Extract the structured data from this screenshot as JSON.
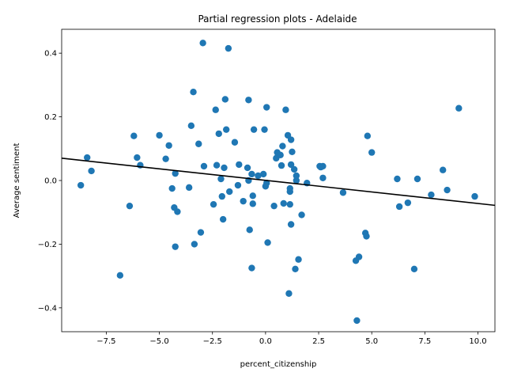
{
  "chart_data": {
    "type": "scatter",
    "title": "Partial regression plots - Adelaide",
    "xlabel": "percent_citizenship",
    "ylabel": "Average sentiment",
    "xlim": [
      -9.6,
      10.8
    ],
    "ylim": [
      -0.475,
      0.475
    ],
    "xticks": [
      -7.5,
      -5.0,
      -2.5,
      0.0,
      2.5,
      5.0,
      7.5,
      10.0
    ],
    "xtick_labels": [
      "−7.5",
      "−5.0",
      "−2.5",
      "0.0",
      "2.5",
      "5.0",
      "7.5",
      "10.0"
    ],
    "yticks": [
      -0.4,
      -0.2,
      0.0,
      0.2,
      0.4
    ],
    "ytick_labels": [
      "−0.4",
      "−0.2",
      "0.0",
      "0.2",
      "0.4"
    ],
    "grid": false,
    "point_color": "#1f77b4",
    "line_color": "#000000",
    "regression_line": {
      "x": [
        -9.6,
        10.8
      ],
      "y": [
        0.07,
        -0.078
      ]
    },
    "points": [
      [
        -8.7,
        -0.015
      ],
      [
        -8.4,
        0.072
      ],
      [
        -8.2,
        0.03
      ],
      [
        -6.85,
        -0.298
      ],
      [
        -6.4,
        -0.08
      ],
      [
        -6.2,
        0.14
      ],
      [
        -6.05,
        0.072
      ],
      [
        -5.9,
        0.048
      ],
      [
        -5.0,
        0.142
      ],
      [
        -4.7,
        0.068
      ],
      [
        -4.55,
        0.11
      ],
      [
        -4.4,
        -0.025
      ],
      [
        -4.25,
        0.022
      ],
      [
        -4.3,
        -0.085
      ],
      [
        -4.25,
        -0.208
      ],
      [
        -4.15,
        -0.098
      ],
      [
        -3.6,
        -0.022
      ],
      [
        -3.5,
        0.172
      ],
      [
        -3.4,
        0.278
      ],
      [
        -3.35,
        -0.2
      ],
      [
        -3.15,
        0.115
      ],
      [
        -3.05,
        -0.163
      ],
      [
        -2.95,
        0.432
      ],
      [
        -2.9,
        0.045
      ],
      [
        -2.45,
        -0.075
      ],
      [
        -2.35,
        0.222
      ],
      [
        -2.3,
        0.048
      ],
      [
        -2.2,
        0.147
      ],
      [
        -2.1,
        0.005
      ],
      [
        -2.05,
        -0.05
      ],
      [
        -2.0,
        -0.122
      ],
      [
        -1.95,
        0.04
      ],
      [
        -1.9,
        0.255
      ],
      [
        -1.85,
        0.16
      ],
      [
        -1.75,
        0.415
      ],
      [
        -1.7,
        -0.035
      ],
      [
        -1.45,
        0.12
      ],
      [
        -1.3,
        -0.015
      ],
      [
        -1.25,
        0.05
      ],
      [
        -1.05,
        -0.065
      ],
      [
        -0.85,
        0.04
      ],
      [
        -0.8,
        0.0
      ],
      [
        -0.8,
        0.253
      ],
      [
        -0.75,
        -0.155
      ],
      [
        -0.65,
        0.02
      ],
      [
        -0.65,
        -0.275
      ],
      [
        -0.6,
        -0.048
      ],
      [
        -0.6,
        -0.073
      ],
      [
        -0.55,
        0.16
      ],
      [
        -0.35,
        0.015
      ],
      [
        -0.1,
        0.02
      ],
      [
        -0.05,
        0.16
      ],
      [
        0.0,
        -0.018
      ],
      [
        0.05,
        0.23
      ],
      [
        0.05,
        -0.008
      ],
      [
        0.1,
        -0.195
      ],
      [
        0.4,
        -0.08
      ],
      [
        0.5,
        0.07
      ],
      [
        0.55,
        0.088
      ],
      [
        0.7,
        0.08
      ],
      [
        0.75,
        0.047
      ],
      [
        0.8,
        0.108
      ],
      [
        0.85,
        -0.072
      ],
      [
        0.95,
        0.222
      ],
      [
        1.05,
        0.142
      ],
      [
        1.1,
        -0.355
      ],
      [
        1.15,
        -0.025
      ],
      [
        1.15,
        -0.035
      ],
      [
        1.15,
        -0.075
      ],
      [
        1.2,
        0.128
      ],
      [
        1.2,
        0.05
      ],
      [
        1.2,
        -0.138
      ],
      [
        1.25,
        0.09
      ],
      [
        1.35,
        0.035
      ],
      [
        1.4,
        -0.278
      ],
      [
        1.45,
        0.0
      ],
      [
        1.45,
        0.015
      ],
      [
        1.55,
        -0.248
      ],
      [
        1.7,
        -0.108
      ],
      [
        1.95,
        -0.008
      ],
      [
        2.55,
        0.045
      ],
      [
        2.6,
        0.042
      ],
      [
        2.7,
        0.045
      ],
      [
        2.7,
        0.008
      ],
      [
        3.65,
        -0.038
      ],
      [
        4.25,
        -0.252
      ],
      [
        4.3,
        -0.44
      ],
      [
        4.4,
        -0.24
      ],
      [
        4.7,
        -0.165
      ],
      [
        4.75,
        -0.175
      ],
      [
        4.8,
        0.14
      ],
      [
        5.0,
        0.088
      ],
      [
        6.2,
        0.005
      ],
      [
        6.3,
        -0.082
      ],
      [
        6.7,
        -0.07
      ],
      [
        7.0,
        -0.278
      ],
      [
        7.15,
        0.005
      ],
      [
        7.8,
        -0.045
      ],
      [
        8.35,
        0.033
      ],
      [
        8.55,
        -0.03
      ],
      [
        9.1,
        0.227
      ],
      [
        9.85,
        -0.05
      ]
    ]
  }
}
